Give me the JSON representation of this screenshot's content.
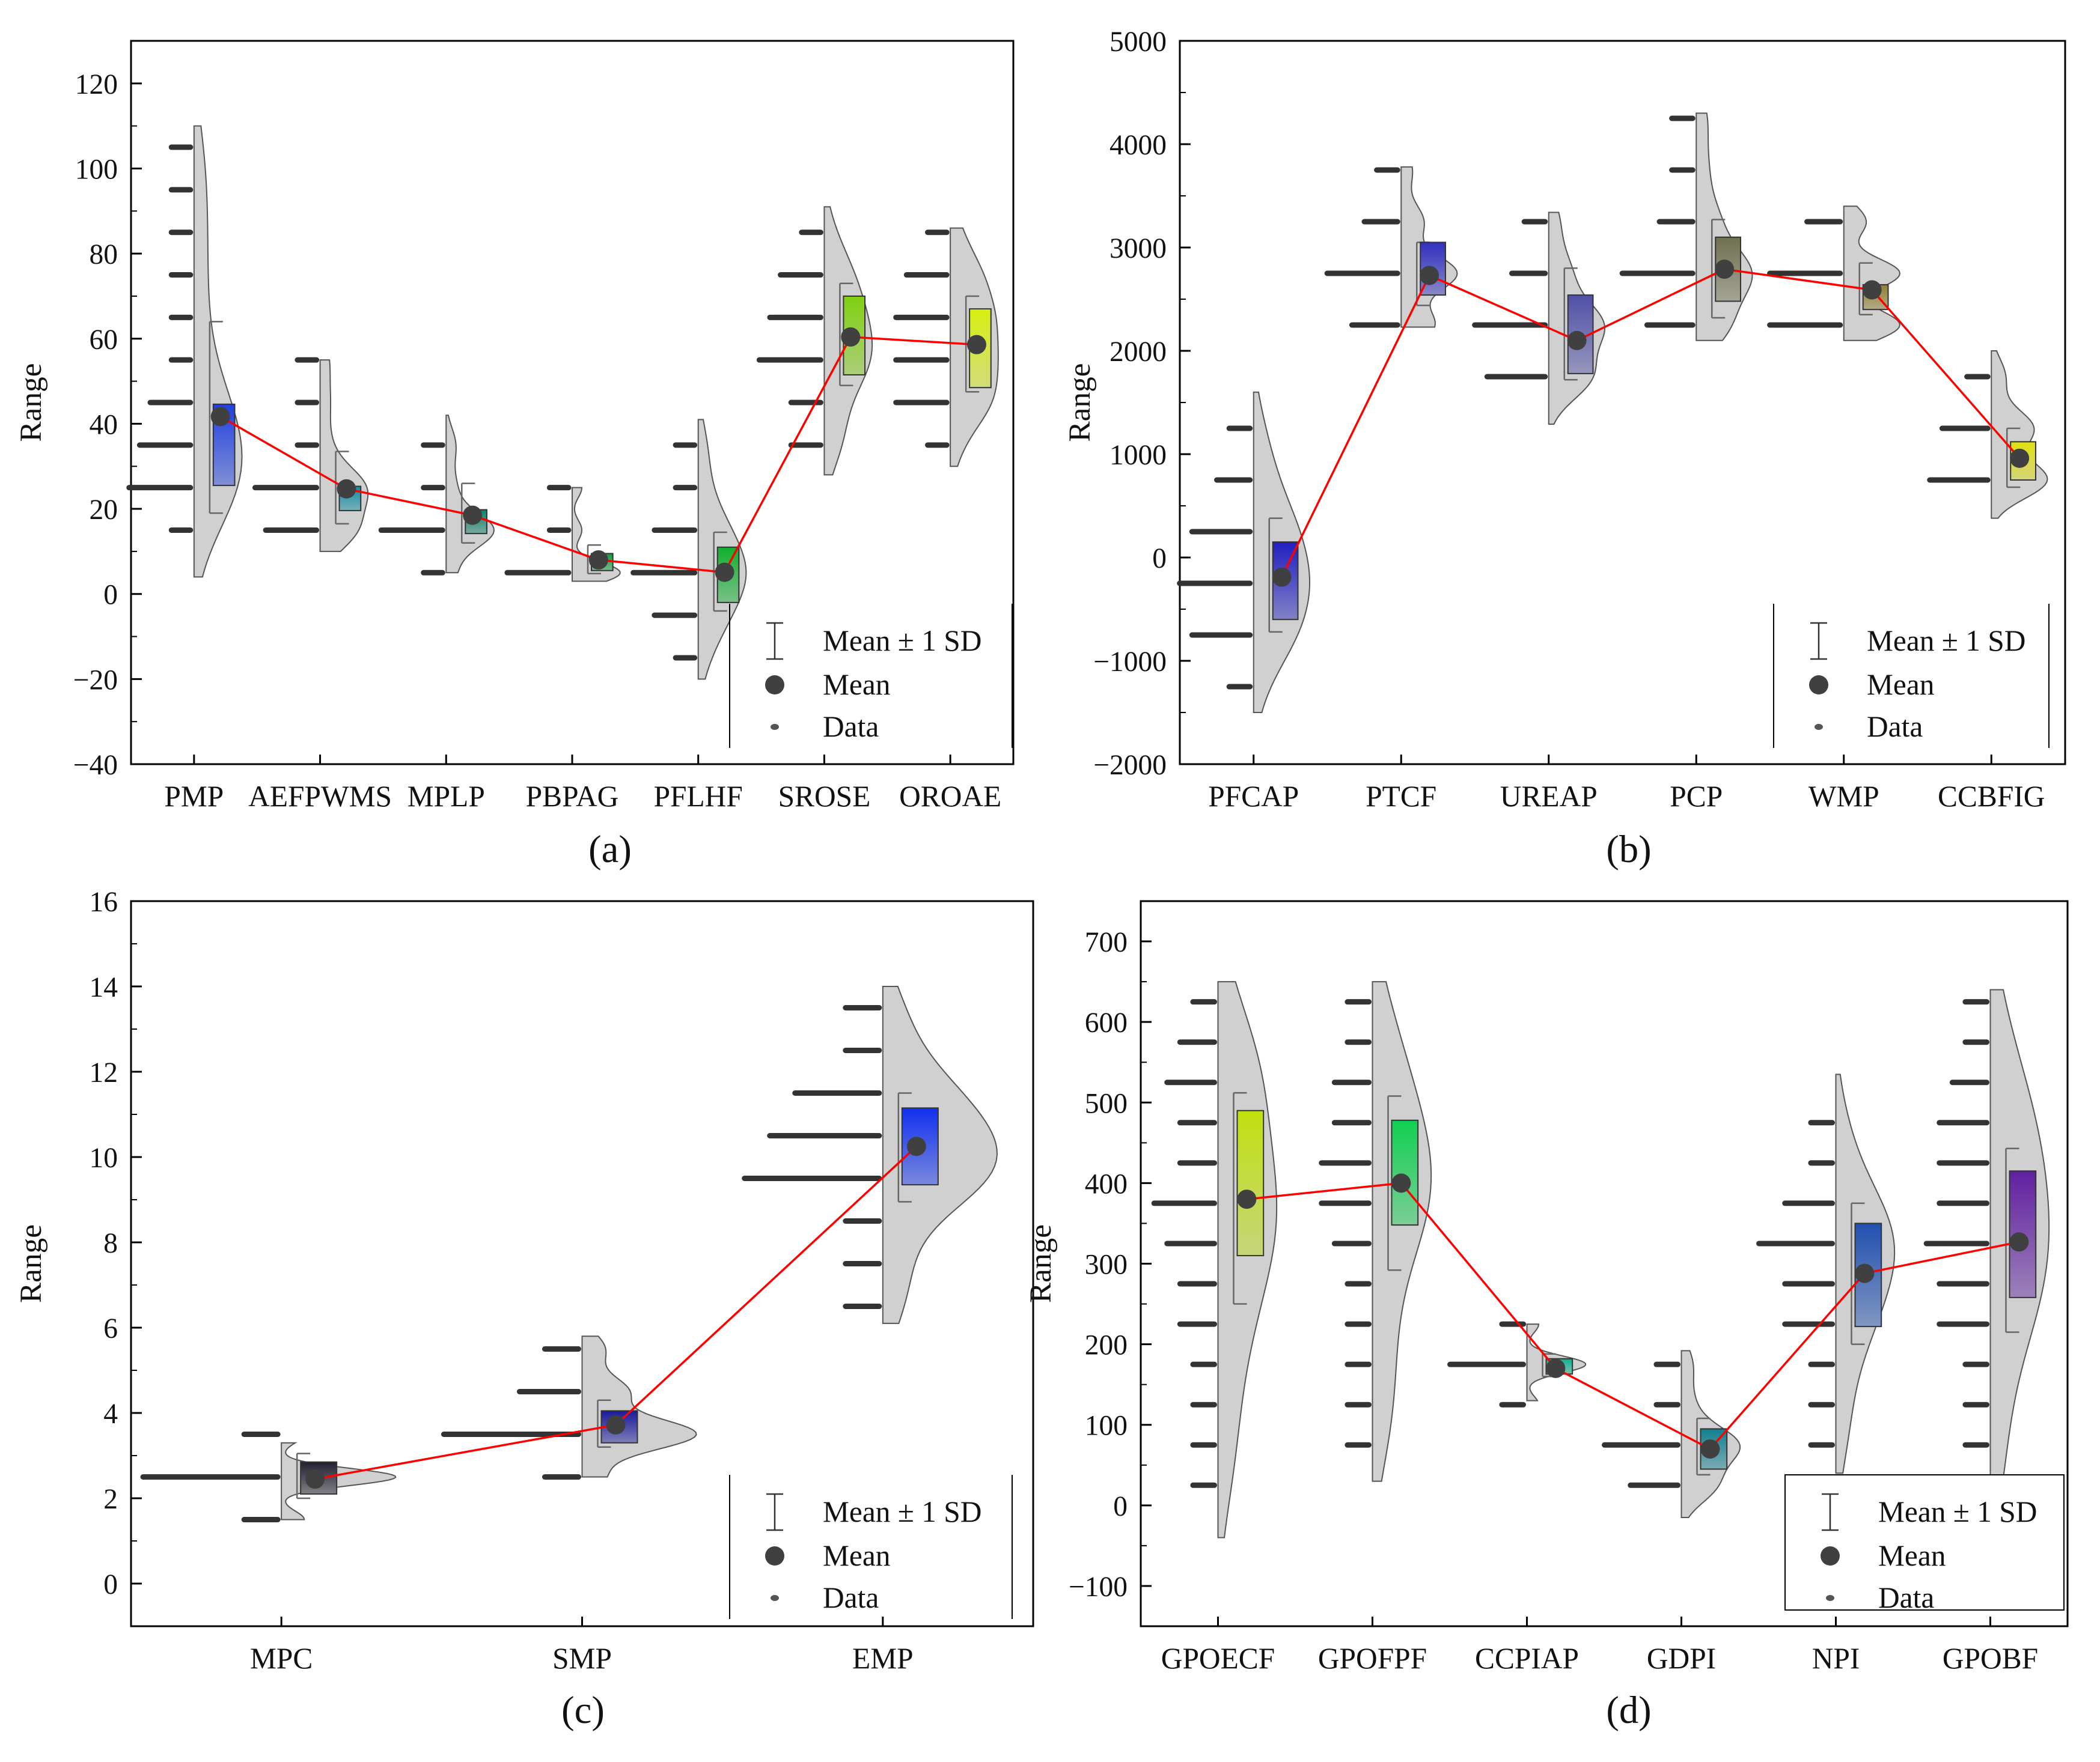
{
  "legend": {
    "sd_label": "Mean ± 1 SD",
    "mean_label": "Mean",
    "data_label": "Data"
  },
  "colors": {
    "mean_line": "#ff0000",
    "mean_marker": "#404040",
    "violin_fill": "#d0d0d0",
    "violin_stroke": "#555555",
    "axis": "#000000"
  },
  "chart_data": [
    {
      "id": "a",
      "panel_label": "(a)",
      "type": "half-violin-box",
      "ylabel": "Range",
      "ylim": [
        -40,
        130
      ],
      "yticks": [
        -40,
        -20,
        0,
        20,
        40,
        60,
        80,
        100,
        120
      ],
      "legend_position": "bottom-right",
      "categories": [
        "PMP",
        "AEFPWMS",
        "MPLP",
        "PBPAG",
        "PFLHF",
        "SROSE",
        "OROAE"
      ],
      "series": [
        {
          "name": "PMP",
          "mean": 41.7,
          "box": [
            25.5,
            44.6
          ],
          "whisker": [
            19,
            64
          ],
          "kde_range": [
            4,
            110
          ],
          "color": "#2040e0",
          "data_counts": [
            {
              "y": 15,
              "n": 1
            },
            {
              "y": 25,
              "n": 5
            },
            {
              "y": 35,
              "n": 4
            },
            {
              "y": 45,
              "n": 3
            },
            {
              "y": 55,
              "n": 1
            },
            {
              "y": 65,
              "n": 1
            },
            {
              "y": 75,
              "n": 1
            },
            {
              "y": 85,
              "n": 1
            },
            {
              "y": 95,
              "n": 1
            },
            {
              "y": 105,
              "n": 1
            }
          ]
        },
        {
          "name": "AEFPWMS",
          "mean": 24.7,
          "box": [
            19.6,
            25.3
          ],
          "whisker": [
            16.5,
            33.5
          ],
          "kde_range": [
            10,
            55
          ],
          "color": "#108ca0",
          "data_counts": [
            {
              "y": 15,
              "n": 4
            },
            {
              "y": 25,
              "n": 5
            },
            {
              "y": 35,
              "n": 1
            },
            {
              "y": 45,
              "n": 1
            },
            {
              "y": 55,
              "n": 1
            }
          ]
        },
        {
          "name": "MPLP",
          "mean": 18.5,
          "box": [
            14.2,
            19.8
          ],
          "whisker": [
            12,
            26
          ],
          "kde_range": [
            5,
            42
          ],
          "color": "#10806a",
          "data_counts": [
            {
              "y": 5,
              "n": 1
            },
            {
              "y": 15,
              "n": 5
            },
            {
              "y": 25,
              "n": 1
            },
            {
              "y": 35,
              "n": 1
            }
          ]
        },
        {
          "name": "PBPAG",
          "mean": 8,
          "box": [
            5.5,
            9.5
          ],
          "whisker": [
            4.8,
            11.5
          ],
          "kde_range": [
            3,
            25
          ],
          "color": "#109c40",
          "data_counts": [
            {
              "y": 5,
              "n": 5
            },
            {
              "y": 15,
              "n": 1
            },
            {
              "y": 25,
              "n": 1
            }
          ]
        },
        {
          "name": "PFLHF",
          "mean": 5.1,
          "box": [
            -2,
            11
          ],
          "whisker": [
            -4,
            14.5
          ],
          "kde_range": [
            -20,
            41
          ],
          "color": "#10b030",
          "data_counts": [
            {
              "y": -15,
              "n": 1
            },
            {
              "y": -5,
              "n": 3
            },
            {
              "y": 5,
              "n": 5
            },
            {
              "y": 15,
              "n": 3
            },
            {
              "y": 25,
              "n": 1
            },
            {
              "y": 35,
              "n": 1
            }
          ]
        },
        {
          "name": "SROSE",
          "mean": 60.4,
          "box": [
            51.5,
            70
          ],
          "whisker": [
            49,
            73
          ],
          "kde_range": [
            28,
            91
          ],
          "color": "#80d010",
          "data_counts": [
            {
              "y": 35,
              "n": 2
            },
            {
              "y": 45,
              "n": 2
            },
            {
              "y": 55,
              "n": 5
            },
            {
              "y": 65,
              "n": 4
            },
            {
              "y": 75,
              "n": 3
            },
            {
              "y": 85,
              "n": 1
            }
          ]
        },
        {
          "name": "OROAE",
          "mean": 58.6,
          "box": [
            48.5,
            67
          ],
          "whisker": [
            47.5,
            70
          ],
          "kde_range": [
            30,
            86
          ],
          "color": "#d8f010",
          "data_counts": [
            {
              "y": 35,
              "n": 1
            },
            {
              "y": 45,
              "n": 4
            },
            {
              "y": 55,
              "n": 4
            },
            {
              "y": 65,
              "n": 4
            },
            {
              "y": 75,
              "n": 3
            },
            {
              "y": 85,
              "n": 1
            }
          ]
        }
      ]
    },
    {
      "id": "b",
      "panel_label": "(b)",
      "type": "half-violin-box",
      "ylabel": "Range",
      "ylim": [
        -2000,
        5000
      ],
      "yticks": [
        -2000,
        -1000,
        0,
        1000,
        2000,
        3000,
        4000,
        5000
      ],
      "legend_position": "bottom-right",
      "categories": [
        "PFCAP",
        "PTCF",
        "UREAP",
        "PCP",
        "WMP",
        "CCBFIG"
      ],
      "series": [
        {
          "name": "PFCAP",
          "mean": -190,
          "box": [
            -600,
            150
          ],
          "whisker": [
            -720,
            380
          ],
          "kde_range": [
            -1500,
            1600
          ],
          "color": "#2020c0",
          "data_counts": [
            {
              "y": -1250,
              "n": 1
            },
            {
              "y": -750,
              "n": 4
            },
            {
              "y": -250,
              "n": 5
            },
            {
              "y": 250,
              "n": 4
            },
            {
              "y": 750,
              "n": 2
            },
            {
              "y": 1250,
              "n": 1
            }
          ]
        },
        {
          "name": "PTCF",
          "mean": 2730,
          "box": [
            2540,
            3050
          ],
          "whisker": [
            2440,
            3050
          ],
          "kde_range": [
            2230,
            3780
          ],
          "color": "#3030c0",
          "data_counts": [
            {
              "y": 2250,
              "n": 3
            },
            {
              "y": 2750,
              "n": 5
            },
            {
              "y": 3250,
              "n": 2
            },
            {
              "y": 3750,
              "n": 1
            }
          ]
        },
        {
          "name": "UREAP",
          "mean": 2100,
          "box": [
            1780,
            2540
          ],
          "whisker": [
            1720,
            2800
          ],
          "kde_range": [
            1290,
            3340
          ],
          "color": "#5050a8",
          "data_counts": [
            {
              "y": 1750,
              "n": 4
            },
            {
              "y": 2250,
              "n": 5
            },
            {
              "y": 2750,
              "n": 2
            },
            {
              "y": 3250,
              "n": 1
            }
          ]
        },
        {
          "name": "PCP",
          "mean": 2790,
          "box": [
            2480,
            3100
          ],
          "whisker": [
            2320,
            3270
          ],
          "kde_range": [
            2100,
            4300
          ],
          "color": "#707050",
          "data_counts": [
            {
              "y": 2250,
              "n": 3
            },
            {
              "y": 2750,
              "n": 5
            },
            {
              "y": 3250,
              "n": 2
            },
            {
              "y": 3750,
              "n": 1
            },
            {
              "y": 4250,
              "n": 1
            }
          ]
        },
        {
          "name": "WMP",
          "mean": 2590,
          "box": [
            2400,
            2640
          ],
          "whisker": [
            2350,
            2850
          ],
          "kde_range": [
            2100,
            3400
          ],
          "color": "#908030",
          "data_counts": [
            {
              "y": 2250,
              "n": 5
            },
            {
              "y": 2750,
              "n": 5
            },
            {
              "y": 3250,
              "n": 2
            }
          ]
        },
        {
          "name": "CCBFIG",
          "mean": 960,
          "box": [
            750,
            1120
          ],
          "whisker": [
            680,
            1250
          ],
          "kde_range": [
            380,
            2000
          ],
          "color": "#e0e010",
          "data_counts": [
            {
              "y": 750,
              "n": 4
            },
            {
              "y": 1250,
              "n": 3
            },
            {
              "y": 1750,
              "n": 1
            }
          ]
        }
      ]
    },
    {
      "id": "c",
      "panel_label": "(c)",
      "type": "half-violin-box",
      "ylabel": "Range",
      "ylim": [
        -1,
        16
      ],
      "yticks": [
        0,
        2,
        4,
        6,
        8,
        10,
        12,
        14,
        16
      ],
      "legend_position": "bottom-right",
      "categories": [
        "MPC",
        "SMP",
        "EMP"
      ],
      "series": [
        {
          "name": "MPC",
          "mean": 2.45,
          "box": [
            2.1,
            2.85
          ],
          "whisker": [
            2.0,
            3.05
          ],
          "kde_range": [
            1.5,
            3.3
          ],
          "color": "#202030",
          "data_counts": [
            {
              "y": 1.5,
              "n": 1
            },
            {
              "y": 2.5,
              "n": 5
            },
            {
              "y": 3.5,
              "n": 1
            }
          ]
        },
        {
          "name": "SMP",
          "mean": 3.72,
          "box": [
            3.3,
            4.05
          ],
          "whisker": [
            3.2,
            4.3
          ],
          "kde_range": [
            2.5,
            5.8
          ],
          "color": "#1a1a9c",
          "data_counts": [
            {
              "y": 2.5,
              "n": 1
            },
            {
              "y": 3.5,
              "n": 5
            },
            {
              "y": 4.5,
              "n": 2
            },
            {
              "y": 5.5,
              "n": 1
            }
          ]
        },
        {
          "name": "EMP",
          "mean": 10.25,
          "box": [
            9.35,
            11.15
          ],
          "whisker": [
            8.95,
            11.5
          ],
          "kde_range": [
            6.1,
            14
          ],
          "color": "#1030f0",
          "data_counts": [
            {
              "y": 6.5,
              "n": 1
            },
            {
              "y": 7.5,
              "n": 1
            },
            {
              "y": 8.5,
              "n": 1
            },
            {
              "y": 9.5,
              "n": 5
            },
            {
              "y": 10.5,
              "n": 4
            },
            {
              "y": 11.5,
              "n": 3
            },
            {
              "y": 12.5,
              "n": 1
            },
            {
              "y": 13.5,
              "n": 1
            }
          ]
        }
      ]
    },
    {
      "id": "d",
      "panel_label": "(d)",
      "type": "half-violin-box",
      "ylabel": "Range",
      "ylim": [
        -150,
        750
      ],
      "yticks": [
        -100,
        0,
        100,
        200,
        300,
        400,
        500,
        600,
        700
      ],
      "legend_position": "bottom-right",
      "categories": [
        "GPOECF",
        "GPOFPF",
        "CCPIAP",
        "GDPI",
        "NPI",
        "GPOBF"
      ],
      "series": [
        {
          "name": "GPOECF",
          "mean": 380,
          "box": [
            310,
            490
          ],
          "whisker": [
            250,
            512
          ],
          "kde_range": [
            -40,
            650
          ],
          "color": "#c0e010",
          "data_counts": [
            {
              "y": 25,
              "n": 1
            },
            {
              "y": 75,
              "n": 1
            },
            {
              "y": 125,
              "n": 1
            },
            {
              "y": 175,
              "n": 1
            },
            {
              "y": 225,
              "n": 2
            },
            {
              "y": 275,
              "n": 2
            },
            {
              "y": 325,
              "n": 3
            },
            {
              "y": 375,
              "n": 4
            },
            {
              "y": 425,
              "n": 2
            },
            {
              "y": 475,
              "n": 2
            },
            {
              "y": 525,
              "n": 3
            },
            {
              "y": 575,
              "n": 2
            },
            {
              "y": 625,
              "n": 1
            }
          ]
        },
        {
          "name": "GPOFPF",
          "mean": 400,
          "box": [
            348,
            478
          ],
          "whisker": [
            292,
            508
          ],
          "kde_range": [
            30,
            650
          ],
          "color": "#10d050",
          "data_counts": [
            {
              "y": 75,
              "n": 1
            },
            {
              "y": 125,
              "n": 1
            },
            {
              "y": 175,
              "n": 1
            },
            {
              "y": 225,
              "n": 1
            },
            {
              "y": 275,
              "n": 1
            },
            {
              "y": 325,
              "n": 2
            },
            {
              "y": 375,
              "n": 3
            },
            {
              "y": 425,
              "n": 3
            },
            {
              "y": 475,
              "n": 2
            },
            {
              "y": 525,
              "n": 2
            },
            {
              "y": 575,
              "n": 1
            },
            {
              "y": 625,
              "n": 1
            }
          ]
        },
        {
          "name": "CCPIAP",
          "mean": 170,
          "box": [
            163,
            182
          ],
          "whisker": [
            160,
            188
          ],
          "kde_range": [
            130,
            225
          ],
          "color": "#10b090",
          "data_counts": [
            {
              "y": 125,
              "n": 1
            },
            {
              "y": 175,
              "n": 5
            },
            {
              "y": 225,
              "n": 1
            }
          ]
        },
        {
          "name": "GDPI",
          "mean": 70,
          "box": [
            45,
            95
          ],
          "whisker": [
            38,
            108
          ],
          "kde_range": [
            -15,
            192
          ],
          "color": "#108090",
          "data_counts": [
            {
              "y": 25,
              "n": 3
            },
            {
              "y": 75,
              "n": 5
            },
            {
              "y": 125,
              "n": 1
            },
            {
              "y": 175,
              "n": 1
            }
          ]
        },
        {
          "name": "NPI",
          "mean": 288,
          "box": [
            222,
            350
          ],
          "whisker": [
            200,
            375
          ],
          "kde_range": [
            40,
            535
          ],
          "color": "#2050b0",
          "data_counts": [
            {
              "y": 75,
              "n": 1
            },
            {
              "y": 125,
              "n": 1
            },
            {
              "y": 175,
              "n": 1
            },
            {
              "y": 225,
              "n": 3
            },
            {
              "y": 275,
              "n": 3
            },
            {
              "y": 325,
              "n": 5
            },
            {
              "y": 375,
              "n": 3
            },
            {
              "y": 425,
              "n": 1
            },
            {
              "y": 475,
              "n": 1
            }
          ]
        },
        {
          "name": "GPOBF",
          "mean": 327,
          "box": [
            258,
            415
          ],
          "whisker": [
            215,
            443
          ],
          "kde_range": [
            -50,
            640
          ],
          "color": "#6020a0",
          "data_counts": [
            {
              "y": 25,
              "n": 1
            },
            {
              "y": 75,
              "n": 1
            },
            {
              "y": 125,
              "n": 1
            },
            {
              "y": 175,
              "n": 1
            },
            {
              "y": 225,
              "n": 3
            },
            {
              "y": 275,
              "n": 3
            },
            {
              "y": 325,
              "n": 4
            },
            {
              "y": 375,
              "n": 3
            },
            {
              "y": 425,
              "n": 3
            },
            {
              "y": 475,
              "n": 3
            },
            {
              "y": 525,
              "n": 2
            },
            {
              "y": 575,
              "n": 1
            },
            {
              "y": 625,
              "n": 1
            }
          ]
        }
      ]
    }
  ]
}
